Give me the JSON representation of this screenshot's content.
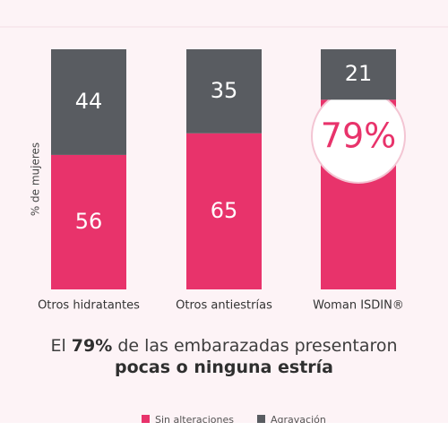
{
  "chart_data": {
    "type": "stacked-bar",
    "y_label": "% de mujeres",
    "categories": [
      "Otros hidratantes",
      "Otros antiestrías",
      "Woman ISDIN®"
    ],
    "series": [
      {
        "name": "Sin alteraciones",
        "color": "#e8336b",
        "values": [
          56,
          65,
          79
        ],
        "value_labels": [
          "56",
          "65",
          "79%"
        ]
      },
      {
        "name": "Agravación",
        "color": "#595c61",
        "values": [
          44,
          35,
          21
        ]
      }
    ],
    "ylim": [
      0,
      100
    ],
    "caption": [
      "El",
      "79%",
      "de las embarazadas presentaron",
      "pocas o ninguna estría"
    ]
  }
}
